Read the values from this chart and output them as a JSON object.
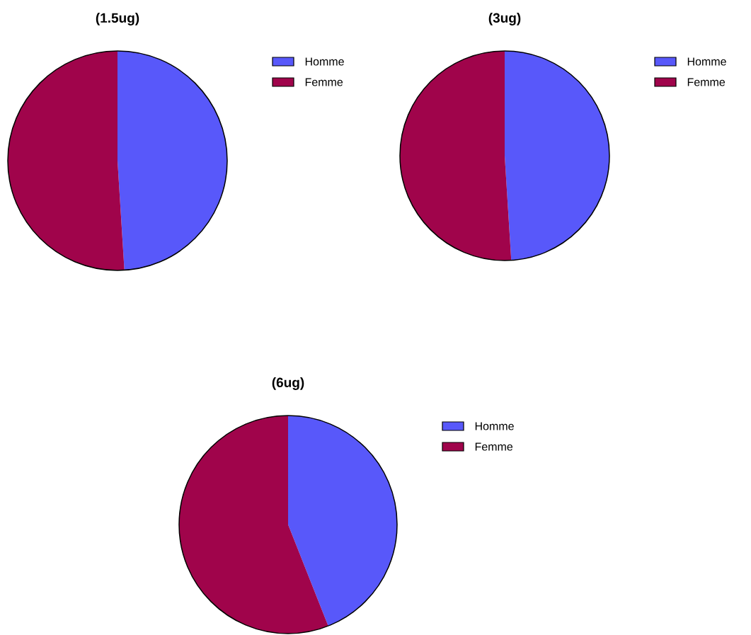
{
  "chart_data": [
    {
      "type": "pie",
      "title": "(1.5ug)",
      "categories": [
        "Homme",
        "Femme"
      ],
      "values": [
        49,
        51
      ],
      "colors": [
        "#5858fa",
        "#a0044b"
      ],
      "legend": "top right"
    },
    {
      "type": "pie",
      "title": "(3ug)",
      "categories": [
        "Homme",
        "Femme"
      ],
      "values": [
        49,
        51
      ],
      "colors": [
        "#5858fa",
        "#a0044b"
      ],
      "legend": "top right"
    },
    {
      "type": "pie",
      "title": "(6ug)",
      "categories": [
        "Homme",
        "Femme"
      ],
      "values": [
        44,
        56
      ],
      "colors": [
        "#5858fa",
        "#a0044b"
      ],
      "legend": "top right"
    }
  ]
}
